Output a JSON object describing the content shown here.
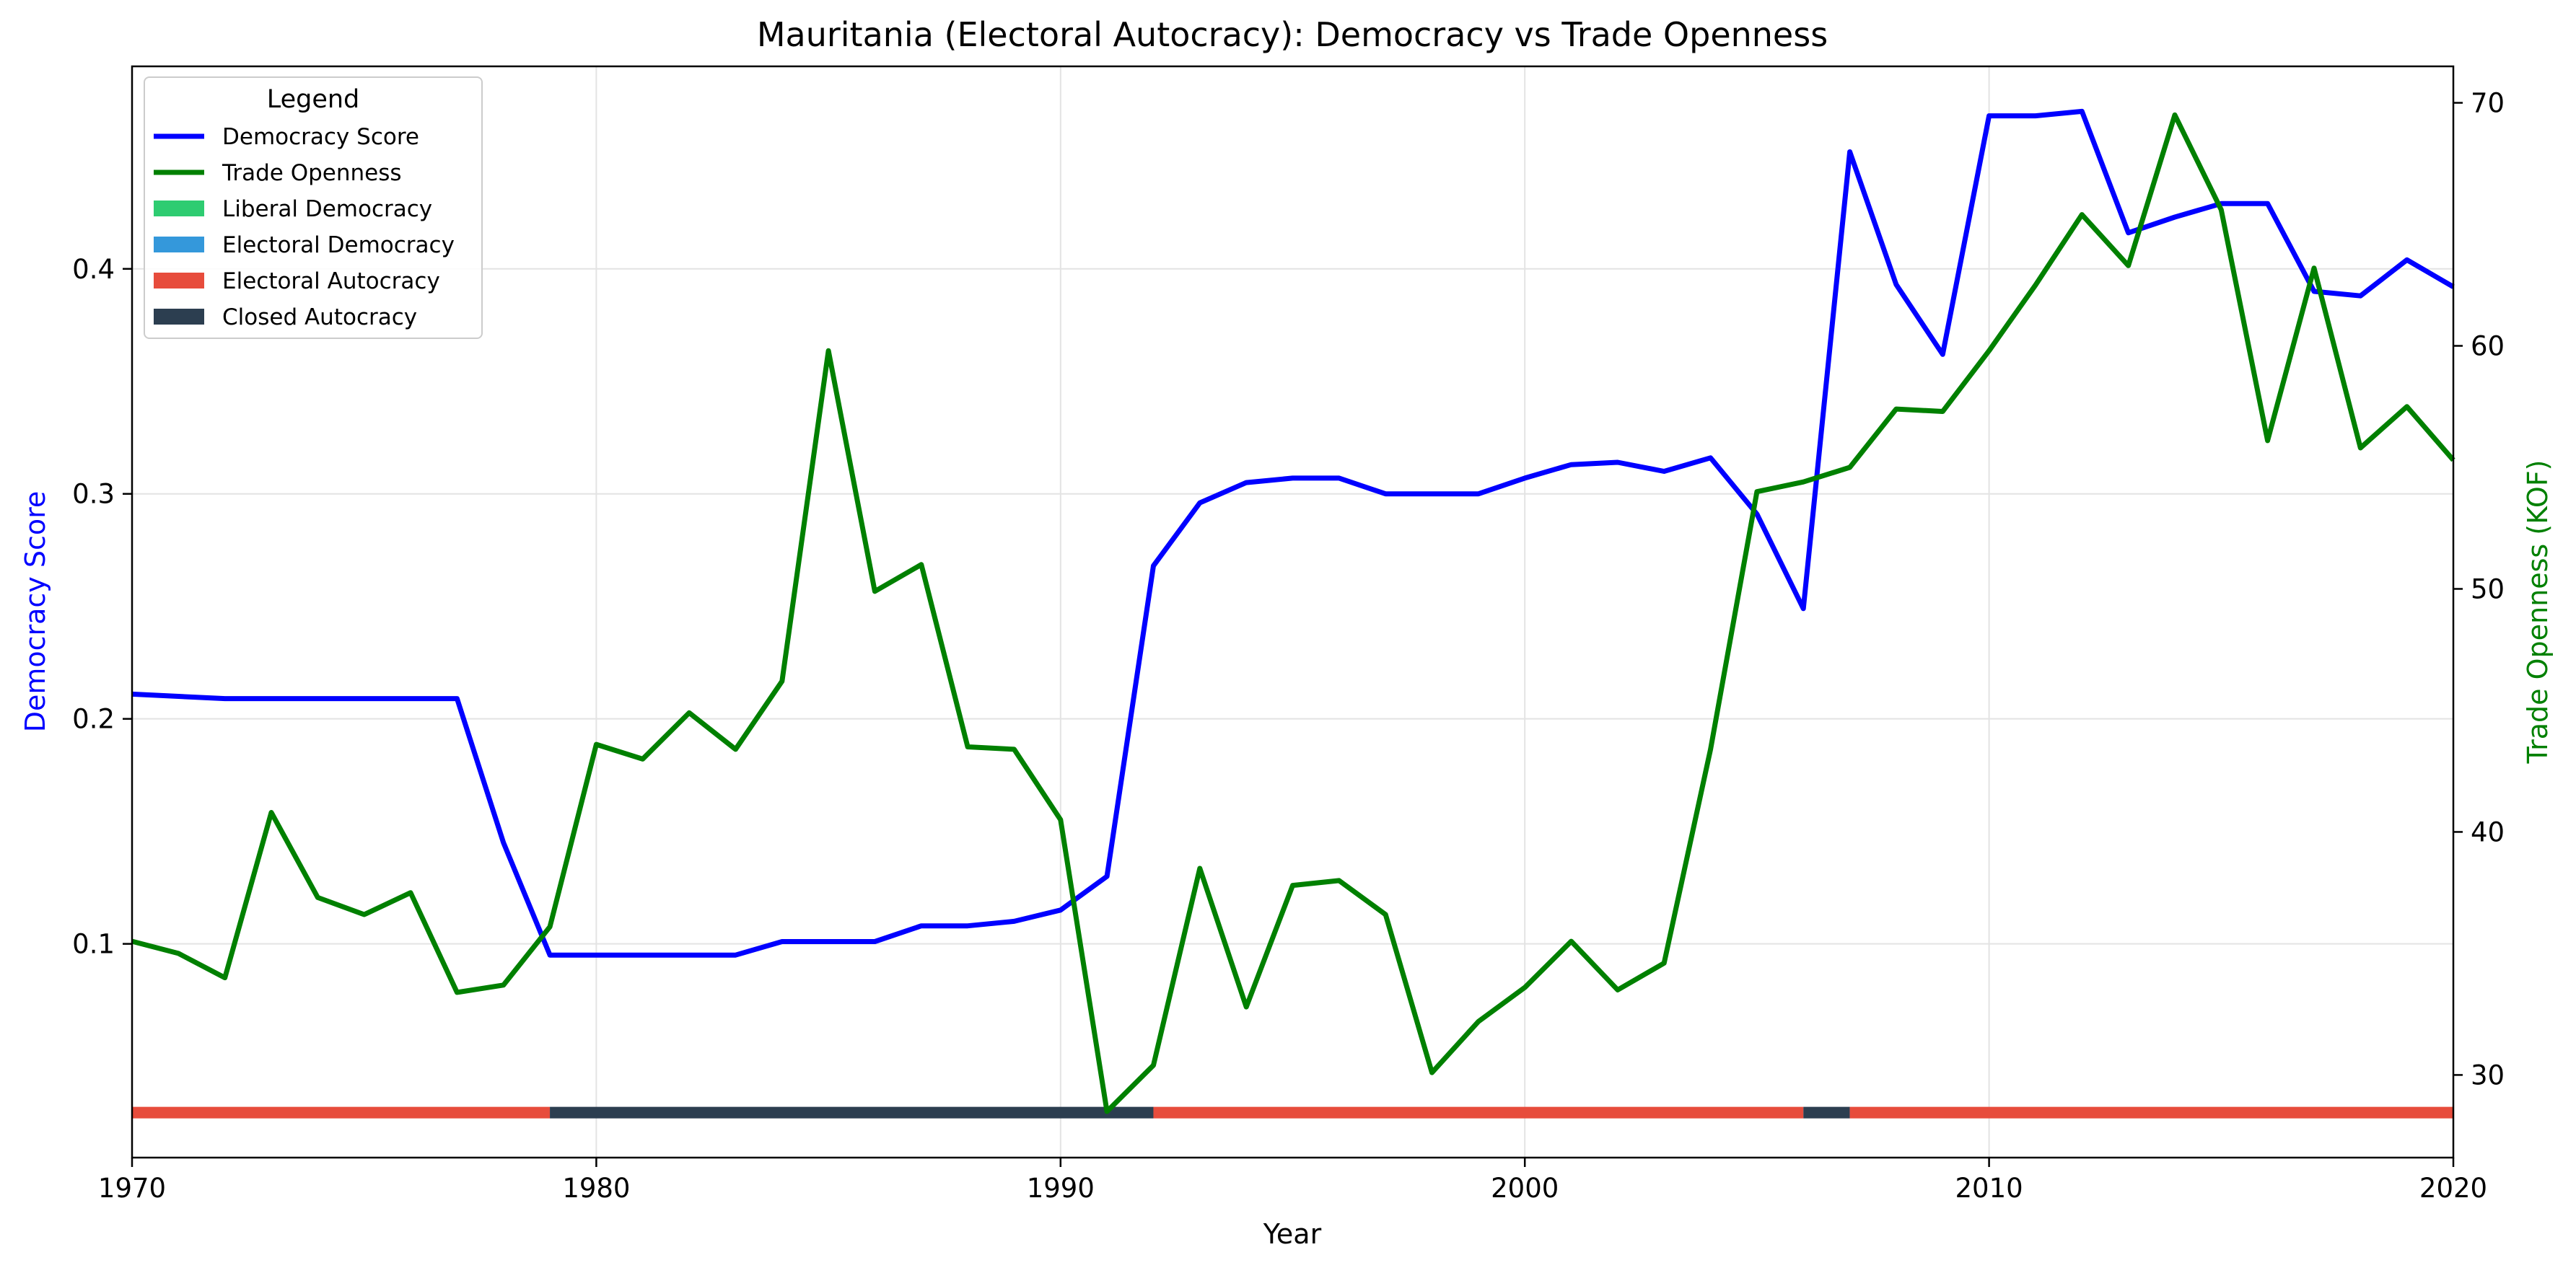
{
  "chart_data": {
    "type": "line",
    "title": "Mauritania (Electoral Autocracy): Democracy vs Trade Openness",
    "xlabel": "Year",
    "ylabel_left": "Democracy Score",
    "ylabel_right": "Trade Openness (KOF)",
    "xlim": [
      1970,
      2020
    ],
    "ylim_left": [
      0.005,
      0.49
    ],
    "ylim_right": [
      26.6,
      71.5
    ],
    "x_ticks": [
      "1970",
      "1980",
      "1990",
      "2000",
      "2010",
      "2020"
    ],
    "y_ticks_left": [
      "0.1",
      "0.2",
      "0.3",
      "0.4"
    ],
    "y_ticks_right": [
      "30",
      "40",
      "50",
      "60",
      "70"
    ],
    "grid": true,
    "legend": {
      "title": "Legend",
      "position": "top-left",
      "entries": [
        {
          "label": "Democracy Score",
          "kind": "line",
          "color": "#0000ff"
        },
        {
          "label": "Trade Openness",
          "kind": "line",
          "color": "#008000"
        },
        {
          "label": "Liberal Democracy",
          "kind": "patch",
          "color": "#2ecc71"
        },
        {
          "label": "Electoral Democracy",
          "kind": "patch",
          "color": "#3498db"
        },
        {
          "label": "Electoral Autocracy",
          "kind": "patch",
          "color": "#e74c3c"
        },
        {
          "label": "Closed Autocracy",
          "kind": "patch",
          "color": "#2c3e50"
        }
      ]
    },
    "x": [
      1970,
      1971,
      1972,
      1973,
      1974,
      1975,
      1976,
      1977,
      1978,
      1979,
      1980,
      1981,
      1982,
      1983,
      1984,
      1985,
      1986,
      1987,
      1988,
      1989,
      1990,
      1991,
      1992,
      1993,
      1994,
      1995,
      1996,
      1997,
      1998,
      1999,
      2000,
      2001,
      2002,
      2003,
      2004,
      2005,
      2006,
      2007,
      2008,
      2009,
      2010,
      2011,
      2012,
      2013,
      2014,
      2015,
      2016,
      2017,
      2018,
      2019,
      2020
    ],
    "series": [
      {
        "name": "Democracy Score",
        "axis": "left",
        "color": "#0000ff",
        "values": [
          0.211,
          0.21,
          0.209,
          0.209,
          0.209,
          0.209,
          0.209,
          0.209,
          0.145,
          0.095,
          0.095,
          0.095,
          0.095,
          0.095,
          0.101,
          0.101,
          0.101,
          0.108,
          0.108,
          0.11,
          0.115,
          0.13,
          0.268,
          0.296,
          0.305,
          0.307,
          0.307,
          0.3,
          0.3,
          0.3,
          0.307,
          0.313,
          0.314,
          0.31,
          0.316,
          0.291,
          0.249,
          0.452,
          0.393,
          0.362,
          0.468,
          0.468,
          0.47,
          0.416,
          0.423,
          0.429,
          0.429,
          0.39,
          0.388,
          0.404,
          0.392
        ]
      },
      {
        "name": "Trade Openness",
        "axis": "right",
        "color": "#008000",
        "values": [
          35.5,
          35.0,
          34.0,
          40.8,
          37.3,
          36.6,
          37.5,
          33.4,
          33.7,
          36.1,
          43.6,
          43.0,
          44.9,
          43.4,
          46.2,
          59.8,
          49.9,
          51.0,
          43.5,
          43.4,
          40.5,
          28.5,
          30.4,
          38.5,
          32.8,
          37.8,
          38.0,
          36.6,
          30.1,
          32.2,
          33.6,
          35.5,
          33.5,
          34.6,
          43.4,
          54.0,
          54.4,
          55.0,
          57.4,
          57.3,
          59.8,
          62.5,
          65.4,
          63.3,
          69.5,
          65.6,
          56.1,
          63.2,
          55.8,
          57.5,
          55.3
        ]
      }
    ],
    "regime_bar": {
      "value": 0.025,
      "segments": [
        {
          "start": 1970,
          "end": 1979,
          "regime": "Electoral Autocracy",
          "color": "#e74c3c"
        },
        {
          "start": 1979,
          "end": 1992,
          "regime": "Closed Autocracy",
          "color": "#2c3e50"
        },
        {
          "start": 1992,
          "end": 2006,
          "regime": "Electoral Autocracy",
          "color": "#e74c3c"
        },
        {
          "start": 2006,
          "end": 2007,
          "regime": "Closed Autocracy",
          "color": "#2c3e50"
        },
        {
          "start": 2007,
          "end": 2020,
          "regime": "Electoral Autocracy",
          "color": "#e74c3c"
        }
      ]
    }
  }
}
